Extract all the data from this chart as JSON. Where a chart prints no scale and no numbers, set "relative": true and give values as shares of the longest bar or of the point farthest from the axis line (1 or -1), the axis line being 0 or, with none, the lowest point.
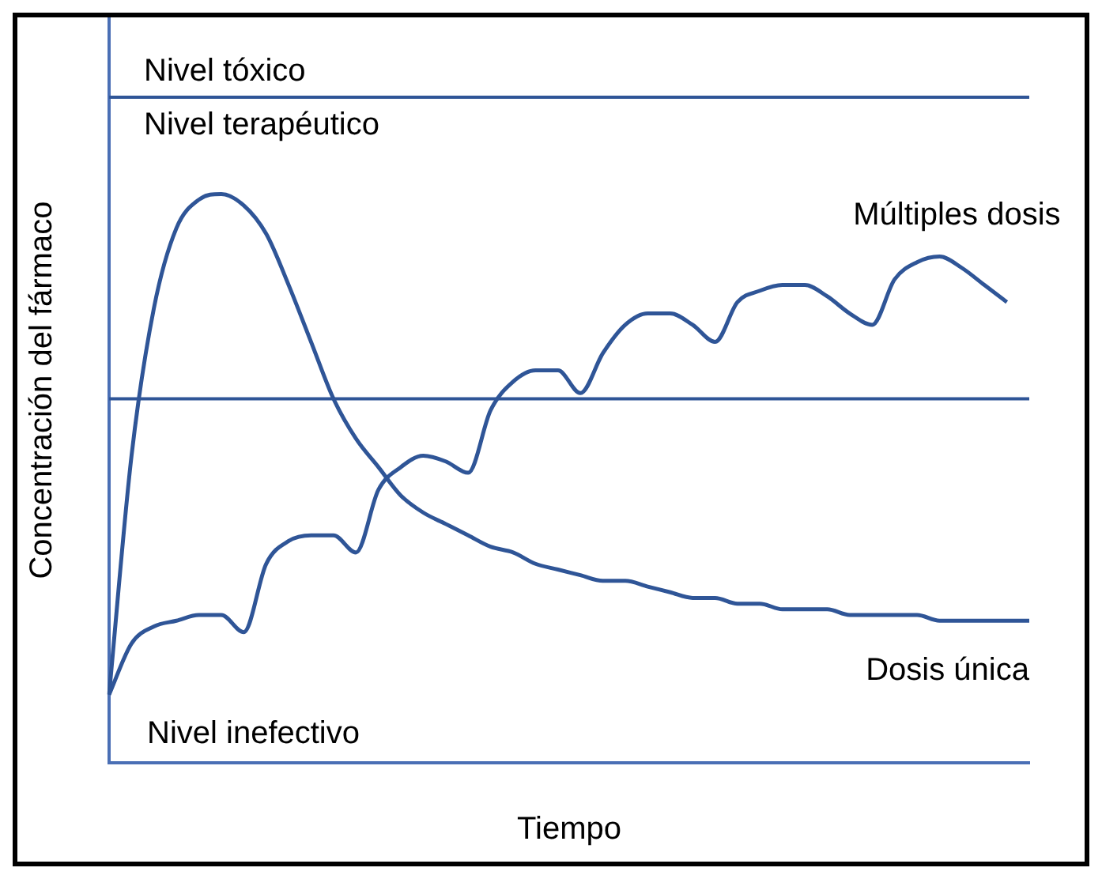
{
  "chart_data": {
    "type": "line",
    "relative": true,
    "xlabel": "Tiempo",
    "ylabel": "Concentración del fármaco",
    "categories": [
      null,
      null,
      null,
      null,
      null,
      null,
      null,
      null,
      null,
      null,
      null,
      null,
      null,
      null,
      null,
      null,
      null,
      null,
      null,
      null,
      null,
      null,
      null,
      null,
      null,
      null,
      null,
      null,
      null,
      null,
      null,
      null,
      null,
      null,
      null,
      null,
      null,
      null,
      null,
      null,
      null,
      null
    ],
    "series": [
      {
        "name": "Dosis única",
        "color": "#2f5597",
        "values": [
          0.12,
          0.54,
          0.8,
          0.94,
          0.99,
          1.0,
          0.98,
          0.93,
          0.84,
          0.74,
          0.64,
          0.57,
          0.52,
          0.47,
          0.44,
          0.42,
          0.4,
          0.38,
          0.37,
          0.35,
          0.34,
          0.33,
          0.32,
          0.32,
          0.31,
          0.3,
          0.29,
          0.29,
          0.28,
          0.28,
          0.27,
          0.27,
          0.27,
          0.26,
          0.26,
          0.26,
          0.26,
          0.25,
          0.25,
          0.25,
          0.25,
          0.25
        ]
      },
      {
        "name": "Múltiples dosis",
        "color": "#2f5597",
        "values": [
          0.12,
          0.21,
          0.24,
          0.25,
          0.26,
          0.26,
          0.23,
          0.35,
          0.39,
          0.4,
          0.4,
          0.37,
          0.48,
          0.52,
          0.54,
          0.53,
          0.51,
          0.62,
          0.67,
          0.69,
          0.69,
          0.65,
          0.72,
          0.77,
          0.79,
          0.79,
          0.77,
          0.74,
          0.81,
          0.83,
          0.84,
          0.84,
          0.82,
          0.79,
          0.77,
          0.85,
          0.88,
          0.89,
          0.87,
          0.84,
          0.81,
          null
        ]
      }
    ],
    "ref_lines": [
      {
        "axis": "y",
        "value": 1.17,
        "label": "Nivel tóxico",
        "color": "#2f5597"
      },
      {
        "axis": "y",
        "value": 0.64,
        "color": "#2f5597"
      }
    ],
    "annotations": [
      "Nivel terapéutico",
      "Nivel inefectivo"
    ],
    "legend": false,
    "grid": false,
    "marker": "none",
    "line_style": "solid"
  }
}
